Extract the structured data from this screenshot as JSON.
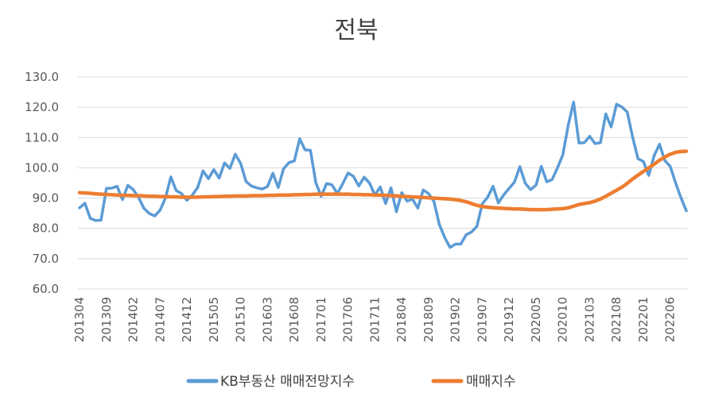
{
  "chart_data": {
    "type": "line",
    "title": "전북",
    "xlabel": "",
    "ylabel": "",
    "ylim": [
      60,
      130
    ],
    "yticks": [
      "130.0",
      "120.0",
      "110.0",
      "100.0",
      "90.0",
      "80.0",
      "70.0",
      "60.0"
    ],
    "xtick_labels": [
      "201304",
      "201309",
      "201402",
      "201407",
      "201412",
      "201505",
      "201510",
      "201603",
      "201608",
      "201701",
      "201706",
      "201711",
      "201804",
      "201809",
      "201902",
      "201907",
      "201912",
      "202005",
      "202010",
      "202103",
      "202108",
      "202201",
      "202206"
    ],
    "grid": true,
    "legend_position": "bottom",
    "series": [
      {
        "name": "KB부동산 매매전망지수",
        "color": "#5B9BD5",
        "values": [
          86.8,
          88.3,
          83.3,
          82.6,
          82.7,
          93.2,
          93.3,
          93.9,
          89.5,
          94.2,
          92.8,
          90.2,
          86.6,
          84.9,
          84.1,
          86.0,
          90.0,
          97.0,
          92.5,
          91.5,
          89.3,
          91.0,
          93.5,
          99.0,
          96.4,
          99.4,
          96.6,
          101.6,
          99.8,
          104.5,
          101.5,
          95.5,
          94.0,
          93.4,
          93.0,
          93.8,
          98.2,
          93.5,
          99.7,
          101.7,
          102.3,
          109.6,
          105.9,
          105.8,
          95.1,
          90.6,
          94.8,
          94.4,
          91.5,
          94.7,
          98.3,
          97.2,
          94.0,
          96.9,
          95.0,
          91.0,
          93.7,
          88.2,
          93.4,
          85.5,
          91.8,
          89.0,
          89.7,
          86.7,
          92.7,
          91.5,
          88.9,
          81.3,
          77.0,
          73.7,
          74.8,
          74.8,
          77.9,
          78.8,
          80.7,
          88.1,
          90.3,
          93.9,
          88.4,
          91.1,
          93.2,
          95.3,
          100.4,
          94.9,
          92.8,
          94.3,
          100.5,
          95.4,
          96.1,
          100.0,
          104.3,
          114.0,
          121.7,
          108.2,
          108.3,
          110.4,
          108.0,
          108.3,
          117.8,
          113.5,
          121.0,
          120.1,
          118.4,
          110.1,
          103.0,
          102.1,
          97.5,
          104.0,
          107.8,
          102.4,
          100.5,
          95.0,
          90.1,
          85.8
        ]
      },
      {
        "name": "매매지수",
        "color": "#ED7D31",
        "values": [
          91.8,
          91.7,
          91.6,
          91.4,
          91.3,
          91.2,
          91.1,
          91.0,
          90.9,
          90.9,
          90.8,
          90.8,
          90.7,
          90.6,
          90.6,
          90.5,
          90.5,
          90.4,
          90.4,
          90.3,
          90.3,
          90.3,
          90.3,
          90.4,
          90.4,
          90.5,
          90.5,
          90.6,
          90.6,
          90.7,
          90.7,
          90.7,
          90.8,
          90.8,
          90.8,
          90.9,
          90.9,
          91.0,
          91.0,
          91.0,
          91.1,
          91.1,
          91.2,
          91.2,
          91.3,
          91.3,
          91.3,
          91.3,
          91.3,
          91.3,
          91.3,
          91.2,
          91.2,
          91.1,
          91.1,
          91.0,
          91.0,
          90.9,
          90.8,
          90.7,
          90.6,
          90.5,
          90.4,
          90.3,
          90.2,
          90.1,
          90.0,
          89.9,
          89.8,
          89.7,
          89.5,
          89.2,
          88.8,
          88.2,
          87.6,
          87.2,
          87.0,
          86.8,
          86.7,
          86.6,
          86.5,
          86.4,
          86.4,
          86.3,
          86.2,
          86.2,
          86.2,
          86.2,
          86.3,
          86.4,
          86.5,
          86.8,
          87.3,
          87.9,
          88.2,
          88.5,
          89.0,
          89.7,
          90.6,
          91.6,
          92.6,
          93.6,
          94.9,
          96.3,
          97.6,
          98.8,
          100.0,
          101.2,
          102.5,
          103.6,
          104.5,
          105.1,
          105.4,
          105.5
        ]
      }
    ]
  }
}
